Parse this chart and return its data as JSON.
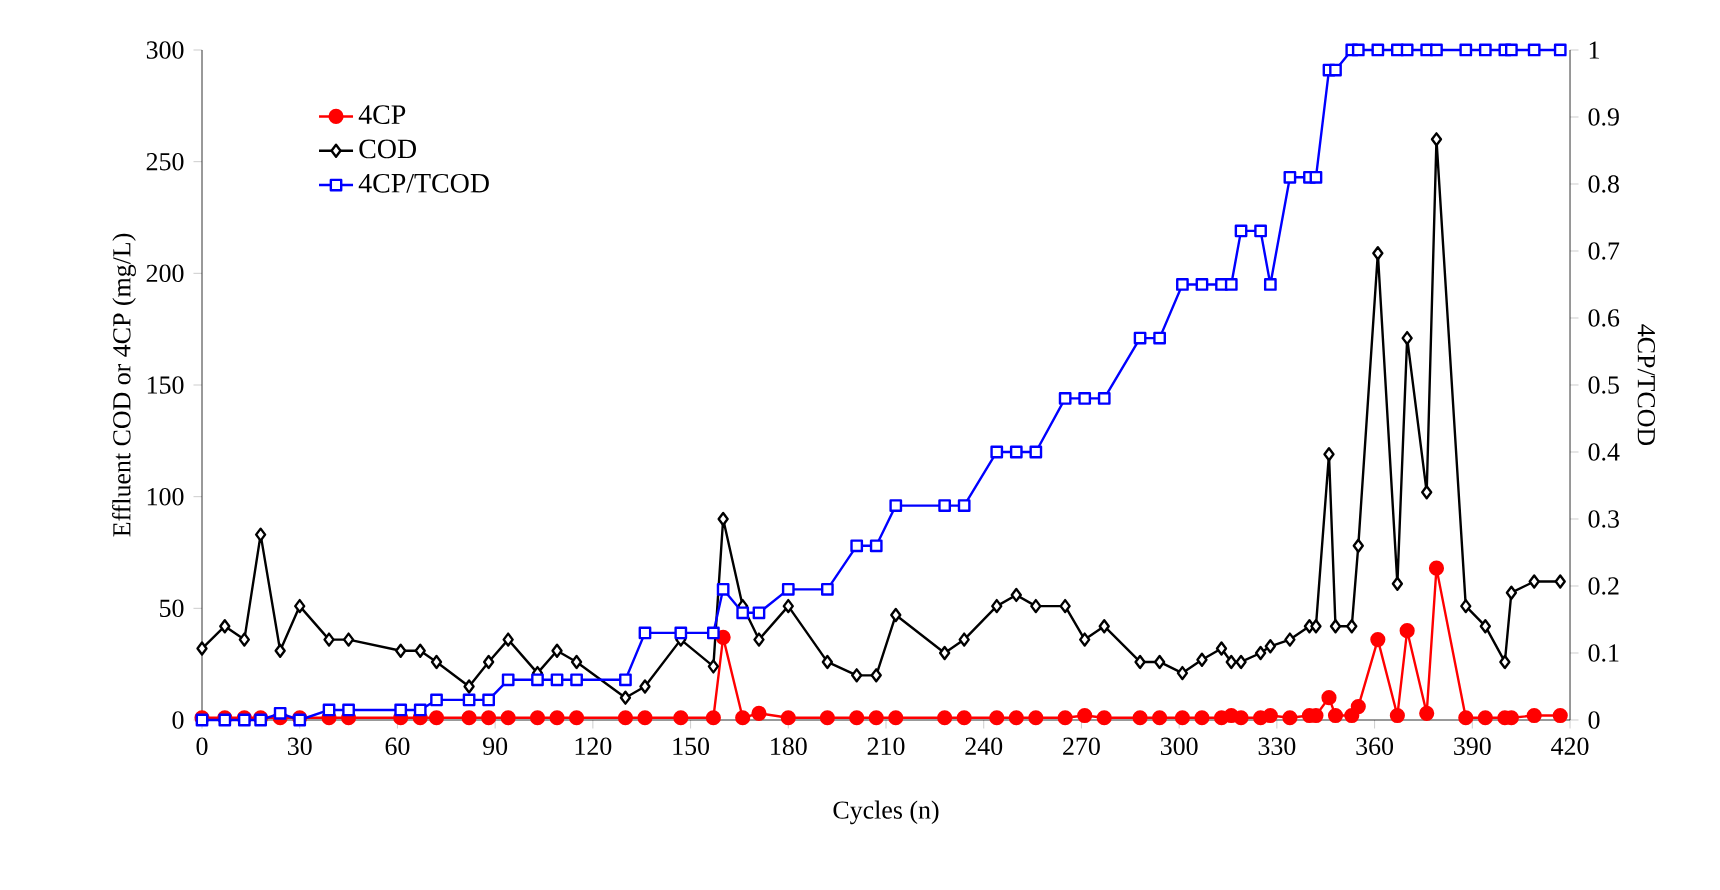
{
  "chart_data": {
    "type": "line",
    "xlabel": "Cycles (n)",
    "ylabel": "Effluent COD or 4CP (mg/L)",
    "y2label": "4CP/TCOD",
    "x": [
      0,
      7,
      13,
      18,
      24,
      30,
      39,
      45,
      61,
      67,
      72,
      82,
      88,
      94,
      103,
      109,
      115,
      130,
      136,
      147,
      157,
      160,
      166,
      171,
      180,
      192,
      201,
      207,
      213,
      228,
      234,
      244,
      250,
      256,
      265,
      271,
      277,
      288,
      294,
      301,
      307,
      313,
      316,
      319,
      325,
      328,
      334,
      340,
      342,
      346,
      348,
      353,
      355,
      361,
      367,
      370,
      376,
      379,
      388,
      394,
      400,
      402,
      409,
      417
    ],
    "xlim": [
      0,
      420
    ],
    "xticks": [
      0,
      30,
      60,
      90,
      120,
      150,
      180,
      210,
      240,
      270,
      300,
      330,
      360,
      390,
      420
    ],
    "ylim": [
      0,
      300
    ],
    "yticks": [
      0,
      50,
      100,
      150,
      200,
      250,
      300
    ],
    "y2lim": [
      0,
      1
    ],
    "y2ticks": [
      0,
      0.1,
      0.2,
      0.3,
      0.4,
      0.5,
      0.6,
      0.7,
      0.8,
      0.9,
      1
    ],
    "legend": "top left",
    "grid": false,
    "line_style": "solid",
    "series": [
      {
        "name": "4CP",
        "color": "#ff0000",
        "marker": "circle",
        "values": [
          1,
          1,
          1,
          1,
          1,
          1,
          1,
          1,
          1,
          1,
          1,
          1,
          1,
          1,
          1,
          1,
          1,
          1,
          1,
          1,
          1,
          37,
          1,
          3,
          1,
          1,
          1,
          1,
          1,
          1,
          1,
          1,
          1,
          1,
          1,
          2,
          1,
          1,
          1,
          1,
          1,
          1,
          2,
          1,
          1,
          2,
          1,
          2,
          2,
          10,
          2,
          2,
          6,
          36,
          2,
          40,
          3,
          68,
          1,
          1,
          1,
          1,
          2,
          2
        ]
      },
      {
        "name": "COD",
        "color": "#000000",
        "marker": "diamond",
        "values": [
          32,
          42,
          36,
          83,
          31,
          51,
          36,
          36,
          31,
          31,
          26,
          15,
          26,
          36,
          21,
          31,
          26,
          10,
          15,
          36,
          24,
          90,
          51,
          36,
          51,
          26,
          20,
          20,
          47,
          30,
          36,
          51,
          56,
          51,
          51,
          36,
          42,
          26,
          26,
          21,
          27,
          32,
          26,
          26,
          30,
          33,
          36,
          42,
          42,
          119,
          42,
          42,
          78,
          209,
          61,
          171,
          102,
          260,
          51,
          42,
          26,
          57,
          62,
          62
        ]
      },
      {
        "name": "4CP/TCOD",
        "color": "#0000ff",
        "marker": "square",
        "axis": "y2",
        "values": [
          0,
          0,
          0,
          0,
          0.01,
          0,
          0.015,
          0.015,
          0.015,
          0.015,
          0.03,
          0.03,
          0.03,
          0.06,
          0.06,
          0.06,
          0.06,
          0.06,
          0.13,
          0.13,
          0.13,
          0.195,
          0.16,
          0.16,
          0.195,
          0.195,
          0.26,
          0.26,
          0.32,
          0.32,
          0.32,
          0.4,
          0.4,
          0.4,
          0.48,
          0.48,
          0.48,
          0.57,
          0.57,
          0.65,
          0.65,
          0.65,
          0.65,
          0.73,
          0.73,
          0.65,
          0.81,
          0.81,
          0.81,
          0.97,
          0.97,
          1,
          1,
          1,
          1,
          1,
          1,
          1,
          1,
          1,
          1,
          1,
          1,
          1
        ]
      }
    ]
  }
}
